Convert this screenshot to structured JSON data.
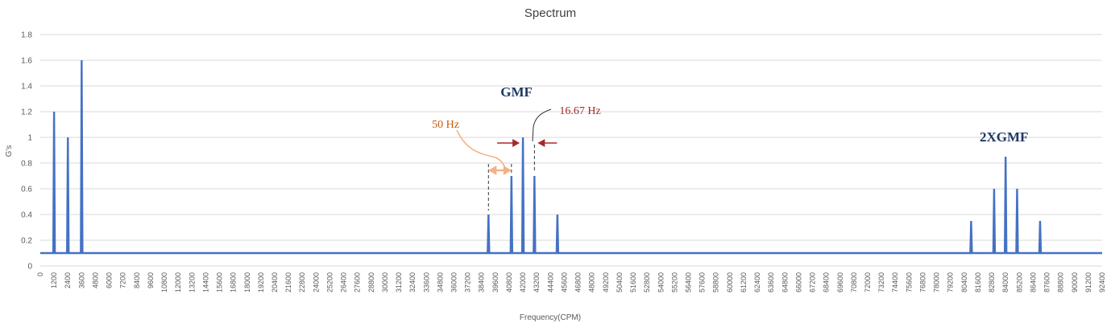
{
  "chart_data": {
    "type": "bar",
    "title": "Spectrum",
    "xlabel": "Frequency(CPM)",
    "ylabel": "G's",
    "ylim": [
      0,
      1.8
    ],
    "yticks": [
      "0",
      "0.2",
      "0.4",
      "0.6",
      "0.8",
      "1",
      "1.2",
      "1.4",
      "1.6",
      "1.8"
    ],
    "xlim": [
      0,
      92400
    ],
    "xtick_step": 1200,
    "baseline": 0.1,
    "grid": true,
    "legend": "none",
    "colors": {
      "bar": "#4472c4",
      "grid": "#d9d9d9",
      "baseline": "#4472c4",
      "gmf": "#1f3864",
      "sideband": "#c55a11",
      "delta": "#a52a2a",
      "arrow_orange": "#f4b183"
    },
    "peaks": [
      {
        "x": 1200,
        "y": 1.2
      },
      {
        "x": 2400,
        "y": 1.0
      },
      {
        "x": 3600,
        "y": 1.6
      },
      {
        "x": 39000,
        "y": 0.4
      },
      {
        "x": 41000,
        "y": 0.7
      },
      {
        "x": 42000,
        "y": 1.0
      },
      {
        "x": 43000,
        "y": 0.7
      },
      {
        "x": 45000,
        "y": 0.4
      },
      {
        "x": 81000,
        "y": 0.35
      },
      {
        "x": 83000,
        "y": 0.6
      },
      {
        "x": 84000,
        "y": 0.85
      },
      {
        "x": 85000,
        "y": 0.6
      },
      {
        "x": 87000,
        "y": 0.35
      }
    ],
    "annotations": {
      "gmf": "GMF",
      "two_gmf": "2XGMF",
      "sideband": "50 Hz",
      "delta": "16.67 Hz"
    }
  }
}
